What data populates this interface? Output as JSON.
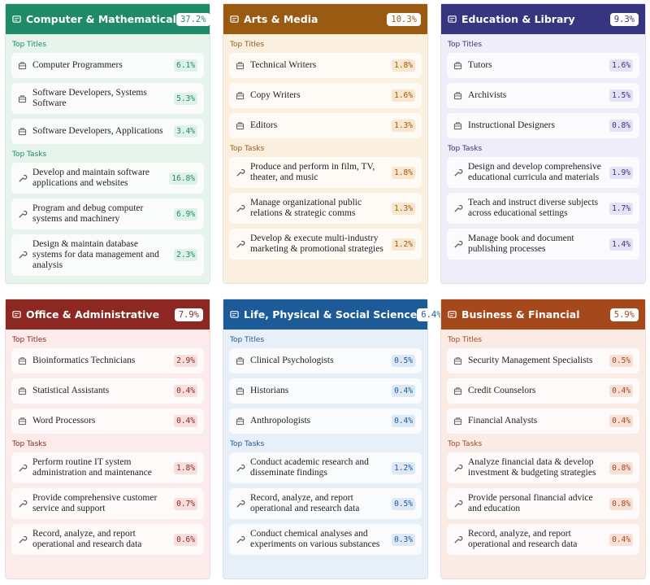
{
  "labels": {
    "titles": "Top Titles",
    "tasks": "Top Tasks"
  },
  "cards": [
    {
      "title": "Computer & Mathematical",
      "share": "37.2%",
      "color": "#1e8a68",
      "bg": "#e6f4ec",
      "tint": "#dff2e8",
      "ink": "#1e8a68",
      "titles": [
        {
          "name": "Computer Programmers",
          "pct": "6.1%"
        },
        {
          "name": "Software Developers, Systems Software",
          "pct": "5.3%"
        },
        {
          "name": "Software Developers, Applications",
          "pct": "3.4%"
        }
      ],
      "tasks": [
        {
          "name": "Develop and maintain software applications and websites",
          "pct": "16.8%"
        },
        {
          "name": "Program and debug computer systems and machinery",
          "pct": "6.9%"
        },
        {
          "name": "Design & maintain database systems for data management and analysis",
          "pct": "2.3%"
        }
      ]
    },
    {
      "title": "Arts & Media",
      "share": "10.3%",
      "color": "#9b5a12",
      "bg": "#fbf0df",
      "tint": "#f8e7cc",
      "ink": "#9b5a12",
      "titles": [
        {
          "name": "Technical Writers",
          "pct": "1.8%"
        },
        {
          "name": "Copy Writers",
          "pct": "1.6%"
        },
        {
          "name": "Editors",
          "pct": "1.3%"
        }
      ],
      "tasks": [
        {
          "name": "Produce and perform in film, TV, theater, and music",
          "pct": "1.8%"
        },
        {
          "name": "Manage organizational public relations & strategic comms",
          "pct": "1.3%"
        },
        {
          "name": "Develop & execute multi-industry marketing & promotional strategies",
          "pct": "1.2%"
        }
      ]
    },
    {
      "title": "Education & Library",
      "share": "9.3%",
      "color": "#37357f",
      "bg": "#eeedf9",
      "tint": "#e4e3f6",
      "ink": "#37357f",
      "titles": [
        {
          "name": "Tutors",
          "pct": "1.6%"
        },
        {
          "name": "Archivists",
          "pct": "1.5%"
        },
        {
          "name": "Instructional Designers",
          "pct": "0.8%"
        }
      ],
      "tasks": [
        {
          "name": "Design and develop comprehensive educational curricula and materials",
          "pct": "1.9%"
        },
        {
          "name": "Teach and instruct diverse subjects across educational settings",
          "pct": "1.7%"
        },
        {
          "name": "Manage book and document publishing processes",
          "pct": "1.4%"
        }
      ]
    },
    {
      "title": "Office & Administrative",
      "share": "7.9%",
      "color": "#8c2722",
      "bg": "#fbebea",
      "tint": "#f8dfdd",
      "ink": "#8c2722",
      "titles": [
        {
          "name": "Bioinformatics Technicians",
          "pct": "2.9%"
        },
        {
          "name": "Statistical Assistants",
          "pct": "0.4%"
        },
        {
          "name": "Word Processors",
          "pct": "0.4%"
        }
      ],
      "tasks": [
        {
          "name": "Perform routine IT system administration and maintenance",
          "pct": "1.8%"
        },
        {
          "name": "Provide comprehensive customer service and support",
          "pct": "0.7%"
        },
        {
          "name": "Record, analyze, and report operational and research data",
          "pct": "0.6%"
        }
      ]
    },
    {
      "title": "Life, Physical & Social Science",
      "share": "6.4%",
      "color": "#1c5b98",
      "bg": "#e7eff8",
      "tint": "#dce8f5",
      "ink": "#1c5b98",
      "titles": [
        {
          "name": "Clinical Psychologists",
          "pct": "0.5%"
        },
        {
          "name": "Historians",
          "pct": "0.4%"
        },
        {
          "name": "Anthropologists",
          "pct": "0.4%"
        }
      ],
      "tasks": [
        {
          "name": "Conduct academic research and disseminate findings",
          "pct": "1.2%"
        },
        {
          "name": "Record, analyze, and report operational and research data",
          "pct": "0.5%"
        },
        {
          "name": "Conduct chemical analyses and experiments on various substances",
          "pct": "0.3%"
        }
      ]
    },
    {
      "title": "Business & Financial",
      "share": "5.9%",
      "color": "#a5481c",
      "bg": "#fbebe5",
      "tint": "#f8e0d6",
      "ink": "#a5481c",
      "titles": [
        {
          "name": "Security Management Specialists",
          "pct": "0.5%"
        },
        {
          "name": "Credit Counselors",
          "pct": "0.4%"
        },
        {
          "name": "Financial Analysts",
          "pct": "0.4%"
        }
      ],
      "tasks": [
        {
          "name": "Analyze financial data & develop investment & budgeting strategies",
          "pct": "0.8%"
        },
        {
          "name": "Provide personal financial advice and education",
          "pct": "0.8%"
        },
        {
          "name": "Record, analyze, and report operational and research data",
          "pct": "0.4%"
        }
      ]
    }
  ]
}
